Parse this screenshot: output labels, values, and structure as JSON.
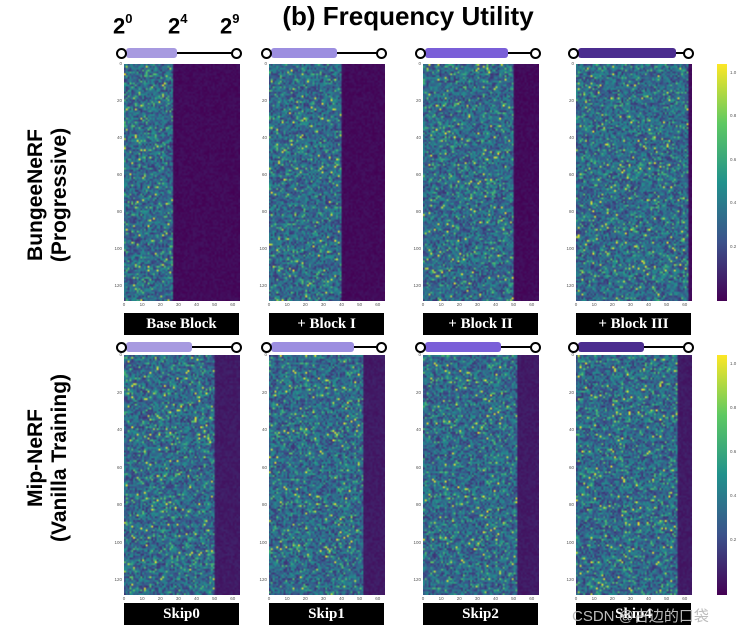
{
  "title": "(b) Frequency Utility",
  "axis_powers": [
    {
      "base": "2",
      "exp": "0"
    },
    {
      "base": "2",
      "exp": "4"
    },
    {
      "base": "2",
      "exp": "9"
    }
  ],
  "rows": [
    {
      "label_line1": "BungeeNeRF",
      "label_line2": "(Progressive)",
      "panels": [
        {
          "caption": "Base Block",
          "used_fraction": 0.42,
          "slider_fill": 0.48,
          "slider_color": "#a79ae0"
        },
        {
          "caption": "+ Block  I",
          "used_fraction": 0.63,
          "slider_fill": 0.62,
          "slider_color": "#9c8ee0"
        },
        {
          "caption": "+ Block II",
          "used_fraction": 0.78,
          "slider_fill": 0.78,
          "slider_color": "#7a5fd8"
        },
        {
          "caption": "+ Block III",
          "used_fraction": 0.97,
          "slider_fill": 0.92,
          "slider_color": "#4b2d8f"
        }
      ],
      "colorbar_ticks": [
        "1.0",
        "0.8",
        "0.6",
        "0.4",
        "0.2"
      ]
    },
    {
      "label_line1": "Mip-NeRF",
      "label_line2": "(Vanilla Training)",
      "panels": [
        {
          "caption": "Skip0",
          "used_fraction": 0.78,
          "slider_fill": 0.62,
          "slider_color": "#a79ae0"
        },
        {
          "caption": "Skip1",
          "used_fraction": 0.82,
          "slider_fill": 0.78,
          "slider_color": "#9c8ee0"
        },
        {
          "caption": "Skip2",
          "used_fraction": 0.82,
          "slider_fill": 0.72,
          "slider_color": "#7a5fd8"
        },
        {
          "caption": "Skip4",
          "used_fraction": 0.88,
          "slider_fill": 0.62,
          "slider_color": "#4b2d8f"
        }
      ],
      "colorbar_ticks": [
        "1.0",
        "0.8",
        "0.6",
        "0.4",
        "0.2"
      ]
    }
  ],
  "y_ticks": [
    "0",
    "20",
    "40",
    "60",
    "80",
    "100",
    "120"
  ],
  "x_ticks": [
    "0",
    "10",
    "20",
    "30",
    "40",
    "50",
    "60"
  ],
  "colormap": [
    "#440154",
    "#3b528b",
    "#21918c",
    "#5ec962",
    "#fde725"
  ],
  "watermark": "CSDN @古边的口袋"
}
